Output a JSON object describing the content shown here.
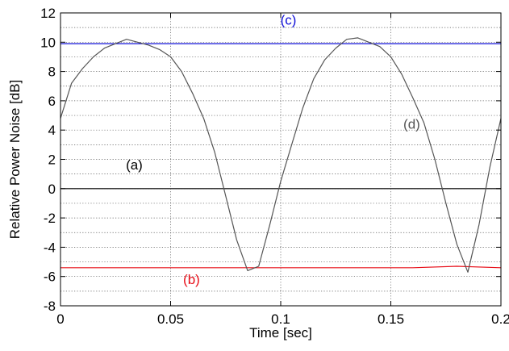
{
  "chart_data": {
    "type": "line",
    "title": "",
    "xlabel": "Time [sec]",
    "ylabel": "Relative Power Noise [dB]",
    "xlim": [
      0,
      0.2
    ],
    "ylim": [
      -8,
      12
    ],
    "x_ticks": [
      0,
      0.05,
      0.1,
      0.15,
      0.2
    ],
    "x_tick_labels": [
      "0",
      "0.05",
      "0.1",
      "0.15",
      "0.2"
    ],
    "y_ticks": [
      -8,
      -6,
      -4,
      -2,
      0,
      2,
      4,
      6,
      8,
      10,
      12
    ],
    "y_tick_labels": [
      "-8",
      "-6",
      "-4",
      "-2",
      "0",
      "2",
      "4",
      "6",
      "8",
      "10",
      "12"
    ],
    "grid": true,
    "legend": "none",
    "series": [
      {
        "label": "(a)",
        "color": "#000000",
        "x": [
          0,
          0.02,
          0.04,
          0.06,
          0.08,
          0.1,
          0.12,
          0.14,
          0.16,
          0.18,
          0.2
        ],
        "y": [
          0,
          0,
          0,
          0,
          0,
          0,
          0,
          0,
          0,
          0,
          0
        ]
      },
      {
        "label": "(b)",
        "color": "#e8101a",
        "x": [
          0,
          0.02,
          0.04,
          0.06,
          0.08,
          0.1,
          0.12,
          0.14,
          0.16,
          0.18,
          0.2
        ],
        "y": [
          -5.4,
          -5.4,
          -5.4,
          -5.4,
          -5.4,
          -5.4,
          -5.4,
          -5.4,
          -5.4,
          -5.3,
          -5.4
        ]
      },
      {
        "label": "(c)",
        "color": "#1010d8",
        "x": [
          0,
          0.02,
          0.04,
          0.06,
          0.08,
          0.1,
          0.12,
          0.14,
          0.16,
          0.18,
          0.2
        ],
        "y": [
          9.9,
          9.9,
          9.9,
          9.9,
          9.9,
          9.9,
          9.9,
          9.9,
          9.9,
          9.9,
          9.9
        ]
      },
      {
        "label": "(d)",
        "color": "#555555",
        "x": [
          0,
          0.005,
          0.01,
          0.015,
          0.02,
          0.025,
          0.03,
          0.035,
          0.04,
          0.045,
          0.05,
          0.055,
          0.06,
          0.065,
          0.07,
          0.075,
          0.08,
          0.085,
          0.09,
          0.095,
          0.1,
          0.105,
          0.11,
          0.115,
          0.12,
          0.125,
          0.13,
          0.135,
          0.14,
          0.145,
          0.15,
          0.155,
          0.16,
          0.165,
          0.17,
          0.175,
          0.18,
          0.185,
          0.19,
          0.195,
          0.2
        ],
        "y": [
          4.8,
          7.2,
          8.2,
          9.0,
          9.6,
          9.9,
          10.2,
          10.0,
          9.8,
          9.5,
          9.0,
          8.0,
          6.5,
          4.8,
          2.5,
          -0.5,
          -3.5,
          -5.6,
          -5.3,
          -2.5,
          0.5,
          3.0,
          5.5,
          7.5,
          8.8,
          9.6,
          10.2,
          10.3,
          10.0,
          9.7,
          9.0,
          7.8,
          6.2,
          4.5,
          2.0,
          -1.0,
          -3.8,
          -5.7,
          -2.5,
          1.5,
          4.8
        ]
      }
    ]
  }
}
